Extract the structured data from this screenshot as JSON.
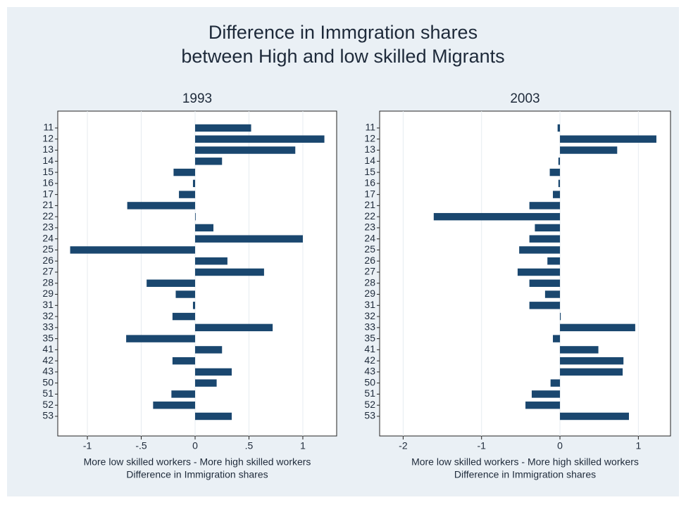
{
  "title": [
    "Difference in Immgration shares",
    "between High and low skilled Migrants"
  ],
  "chart_data": [
    {
      "type": "hbar",
      "title": "1993",
      "color": "#1a476f",
      "grid": true,
      "categories": [
        "11",
        "12",
        "13",
        "14",
        "15",
        "16",
        "17",
        "21",
        "22",
        "23",
        "24",
        "25",
        "26",
        "27",
        "28",
        "29",
        "31",
        "32",
        "33",
        "35",
        "41",
        "42",
        "43",
        "50",
        "51",
        "52",
        "53"
      ],
      "values": [
        0.52,
        1.2,
        0.93,
        0.25,
        -0.2,
        -0.02,
        -0.15,
        -0.63,
        0,
        0.17,
        1.0,
        -1.16,
        0.3,
        0.64,
        -0.45,
        -0.18,
        -0.02,
        -0.21,
        0.72,
        -0.64,
        0.25,
        -0.21,
        0.34,
        0.2,
        -0.22,
        -0.39,
        0.34
      ],
      "xlim": [
        -1.275,
        1.314
      ],
      "xticks": [
        -1,
        {
          "value": -0.5,
          "label": "-.5"
        },
        0,
        {
          "value": 0.5,
          "label": ".5"
        },
        1
      ],
      "xlabel": [
        "More low skilled workers - More high skilled workers",
        "Difference in Immigration shares"
      ]
    },
    {
      "type": "hbar",
      "title": "2003",
      "color": "#1a476f",
      "grid": true,
      "categories": [
        "11",
        "12",
        "13",
        "14",
        "15",
        "16",
        "17",
        "21",
        "22",
        "23",
        "24",
        "25",
        "26",
        "27",
        "28",
        "29",
        "31",
        "32",
        "33",
        "35",
        "41",
        "42",
        "43",
        "50",
        "51",
        "52",
        "53"
      ],
      "values": [
        -0.03,
        1.23,
        0.73,
        -0.02,
        -0.13,
        -0.02,
        -0.09,
        -0.39,
        -1.61,
        -0.32,
        -0.39,
        -0.52,
        -0.16,
        -0.54,
        -0.39,
        -0.19,
        -0.39,
        0.01,
        0.96,
        -0.09,
        0.49,
        0.81,
        0.8,
        -0.12,
        -0.36,
        -0.44,
        0.88
      ],
      "xlim": [
        -2.3,
        1.41
      ],
      "xticks": [
        -2,
        -1,
        0,
        1
      ],
      "xlabel": [
        "More low skilled workers - More high skilled workers",
        "Difference in Immigration shares"
      ]
    }
  ]
}
